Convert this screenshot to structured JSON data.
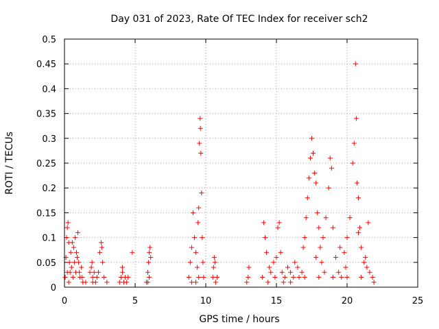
{
  "chart_data": {
    "type": "scatter",
    "title": "Day 031 of 2023, Rate Of TEC Index for receiver sch2",
    "xlabel": "GPS time / hours",
    "ylabel": "ROTI / TECUs",
    "xlim": [
      0,
      25
    ],
    "ylim": [
      0,
      0.5
    ],
    "x_ticks": [
      "0",
      "5",
      "10",
      "15",
      "20",
      "25"
    ],
    "y_ticks": [
      "0",
      "0.05",
      "0.1",
      "0.15",
      "0.2",
      "0.25",
      "0.3",
      "0.35",
      "0.4",
      "0.45",
      "0.5"
    ],
    "grid": true,
    "marker": "plus",
    "color": "#ff0000",
    "series": [
      {
        "points": [
          [
            0.05,
            0.02
          ],
          [
            0.1,
            0.06
          ],
          [
            0.15,
            0.1
          ],
          [
            0.2,
            0.12
          ],
          [
            0.25,
            0.13
          ],
          [
            0.3,
            0.09
          ],
          [
            0.35,
            0.05
          ],
          [
            0.4,
            0.03
          ],
          [
            0.5,
            0.04
          ],
          [
            0.6,
            0.02
          ],
          [
            0.7,
            0.05
          ],
          [
            0.8,
            0.03
          ],
          [
            0.9,
            0.06
          ],
          [
            1.0,
            0.05
          ],
          [
            1.1,
            0.02
          ],
          [
            1.2,
            0.04
          ],
          [
            1.3,
            0.01
          ],
          [
            0.45,
            0.07
          ],
          [
            0.55,
            0.09
          ],
          [
            0.65,
            0.08
          ],
          [
            0.75,
            0.1
          ],
          [
            0.85,
            0.07
          ],
          [
            0.95,
            0.11
          ],
          [
            1.05,
            0.03
          ],
          [
            1.25,
            0.02
          ],
          [
            1.5,
            0.01
          ],
          [
            0.2,
            0.03
          ],
          [
            0.3,
            0.01
          ],
          [
            1.8,
            0.03
          ],
          [
            1.9,
            0.04
          ],
          [
            2.0,
            0.02
          ],
          [
            2.1,
            0.03
          ],
          [
            2.2,
            0.01
          ],
          [
            2.3,
            0.02
          ],
          [
            2.4,
            0.03
          ],
          [
            2.5,
            0.07
          ],
          [
            2.6,
            0.09
          ],
          [
            2.65,
            0.08
          ],
          [
            2.7,
            0.05
          ],
          [
            2.8,
            0.02
          ],
          [
            3.0,
            0.01
          ],
          [
            2.0,
            0.01
          ],
          [
            1.95,
            0.05
          ],
          [
            3.9,
            0.01
          ],
          [
            4.0,
            0.02
          ],
          [
            4.1,
            0.03
          ],
          [
            4.2,
            0.01
          ],
          [
            4.3,
            0.02
          ],
          [
            4.4,
            0.01
          ],
          [
            4.5,
            0.02
          ],
          [
            4.8,
            0.07
          ],
          [
            4.1,
            0.04
          ],
          [
            5.8,
            0.01
          ],
          [
            5.9,
            0.03
          ],
          [
            5.95,
            0.05
          ],
          [
            6.0,
            0.07
          ],
          [
            6.05,
            0.08
          ],
          [
            6.1,
            0.06
          ],
          [
            6.0,
            0.02
          ],
          [
            5.9,
            0.01
          ],
          [
            8.8,
            0.02
          ],
          [
            8.9,
            0.05
          ],
          [
            9.0,
            0.08
          ],
          [
            9.1,
            0.15
          ],
          [
            9.2,
            0.1
          ],
          [
            9.3,
            0.07
          ],
          [
            9.4,
            0.04
          ],
          [
            9.45,
            0.13
          ],
          [
            9.5,
            0.16
          ],
          [
            9.55,
            0.29
          ],
          [
            9.6,
            0.34
          ],
          [
            9.62,
            0.32
          ],
          [
            9.65,
            0.27
          ],
          [
            9.7,
            0.19
          ],
          [
            9.75,
            0.1
          ],
          [
            9.8,
            0.05
          ],
          [
            9.85,
            0.02
          ],
          [
            9.5,
            0.02
          ],
          [
            9.3,
            0.01
          ],
          [
            9.0,
            0.01
          ],
          [
            10.5,
            0.02
          ],
          [
            10.55,
            0.04
          ],
          [
            10.6,
            0.06
          ],
          [
            10.65,
            0.05
          ],
          [
            10.7,
            0.01
          ],
          [
            10.8,
            0.02
          ],
          [
            12.9,
            0.01
          ],
          [
            13.0,
            0.02
          ],
          [
            13.05,
            0.04
          ],
          [
            14.0,
            0.02
          ],
          [
            14.1,
            0.13
          ],
          [
            14.2,
            0.1
          ],
          [
            14.3,
            0.07
          ],
          [
            14.5,
            0.04
          ],
          [
            14.6,
            0.03
          ],
          [
            14.8,
            0.05
          ],
          [
            15.0,
            0.06
          ],
          [
            15.1,
            0.12
          ],
          [
            15.2,
            0.13
          ],
          [
            15.4,
            0.03
          ],
          [
            15.6,
            0.02
          ],
          [
            15.8,
            0.04
          ],
          [
            16.0,
            0.03
          ],
          [
            16.2,
            0.02
          ],
          [
            16.5,
            0.04
          ],
          [
            16.8,
            0.03
          ],
          [
            16.9,
            0.08
          ],
          [
            17.0,
            0.1
          ],
          [
            17.1,
            0.14
          ],
          [
            17.2,
            0.18
          ],
          [
            17.3,
            0.22
          ],
          [
            17.4,
            0.26
          ],
          [
            17.5,
            0.3
          ],
          [
            17.6,
            0.27
          ],
          [
            17.7,
            0.23
          ],
          [
            17.8,
            0.21
          ],
          [
            17.9,
            0.15
          ],
          [
            18.0,
            0.12
          ],
          [
            18.1,
            0.08
          ],
          [
            18.2,
            0.05
          ],
          [
            18.3,
            0.1
          ],
          [
            18.5,
            0.14
          ],
          [
            18.7,
            0.2
          ],
          [
            18.8,
            0.26
          ],
          [
            18.9,
            0.24
          ],
          [
            19.0,
            0.12
          ],
          [
            19.2,
            0.06
          ],
          [
            19.4,
            0.03
          ],
          [
            19.6,
            0.02
          ],
          [
            19.8,
            0.07
          ],
          [
            20.0,
            0.1
          ],
          [
            20.2,
            0.14
          ],
          [
            20.4,
            0.25
          ],
          [
            20.5,
            0.29
          ],
          [
            20.6,
            0.45
          ],
          [
            20.65,
            0.34
          ],
          [
            20.7,
            0.21
          ],
          [
            20.8,
            0.18
          ],
          [
            20.9,
            0.12
          ],
          [
            21.0,
            0.08
          ],
          [
            21.2,
            0.05
          ],
          [
            21.4,
            0.04
          ],
          [
            21.6,
            0.03
          ],
          [
            21.8,
            0.02
          ],
          [
            21.9,
            0.01
          ],
          [
            15.5,
            0.01
          ],
          [
            16.0,
            0.01
          ],
          [
            17.0,
            0.02
          ],
          [
            18.0,
            0.02
          ],
          [
            19.0,
            0.02
          ],
          [
            20.0,
            0.02
          ],
          [
            21.0,
            0.02
          ],
          [
            16.3,
            0.05
          ],
          [
            17.8,
            0.06
          ],
          [
            19.5,
            0.08
          ],
          [
            20.8,
            0.11
          ],
          [
            21.5,
            0.13
          ],
          [
            21.3,
            0.06
          ],
          [
            14.4,
            0.01
          ],
          [
            14.9,
            0.02
          ],
          [
            15.3,
            0.07
          ],
          [
            16.6,
            0.02
          ],
          [
            18.4,
            0.03
          ],
          [
            19.9,
            0.04
          ]
        ]
      }
    ]
  }
}
